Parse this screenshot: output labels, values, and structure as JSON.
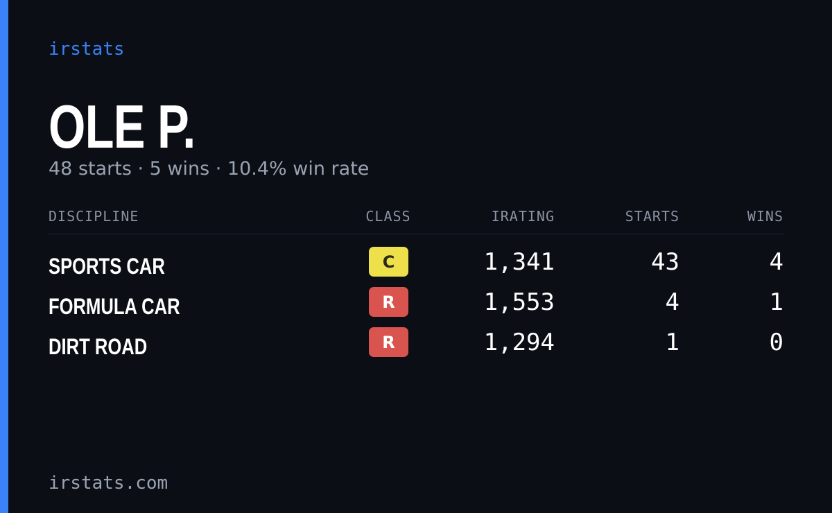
{
  "brand": "irstats",
  "profile": {
    "name": "OLE P.",
    "summary": "48 starts · 5 wins · 10.4% win rate"
  },
  "table": {
    "header": [
      "DISCIPLINE",
      "CLASS",
      "IRATING",
      "STARTS",
      "WINS"
    ],
    "rows": [
      {
        "discipline": "SPORTS CAR",
        "class": "C",
        "class_color": "#ede04a",
        "irating": "1,341",
        "starts": "43",
        "wins": "4"
      },
      {
        "discipline": "FORMULA CAR",
        "class": "R",
        "class_color": "#d9534f",
        "irating": "1,553",
        "starts": "4",
        "wins": "1"
      },
      {
        "discipline": "DIRT ROAD",
        "class": "R",
        "class_color": "#d9534f",
        "irating": "1,294",
        "starts": "1",
        "wins": "0"
      }
    ]
  },
  "footer": "irstats.com"
}
